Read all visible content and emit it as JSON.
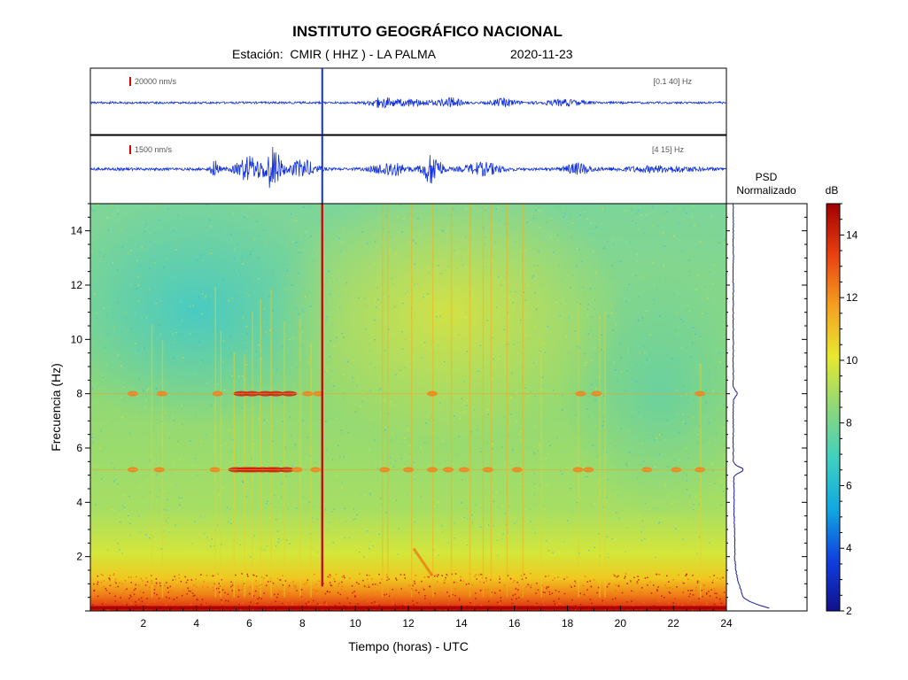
{
  "header": {
    "title": "INSTITUTO GEOGRÁFICO NACIONAL",
    "station_label": "Estación:",
    "station_value": "CMIR ( HHZ ) - LA PALMA",
    "date": "2020-11-23"
  },
  "colors": {
    "trace": "#1030e0",
    "scale_marker": "#e00000",
    "event_line": "#c01010",
    "psd_line": "#1a1a9a",
    "colormap": [
      "#10108a",
      "#1040e0",
      "#10a8e0",
      "#40d0c0",
      "#8ed878",
      "#e8e830",
      "#f4a020",
      "#e84010",
      "#a00000"
    ]
  },
  "chart_data": [
    {
      "type": "line",
      "name": "seismogram-broadband",
      "scale_label": "20000 nm/s",
      "filter_label": "[0.1 40] Hz",
      "x_range": [
        0,
        24
      ],
      "event_time_h": 8.75
    },
    {
      "type": "line",
      "name": "seismogram-filtered",
      "scale_label": "1500 nm/s",
      "filter_label": "[4 15] Hz",
      "x_range": [
        0,
        24
      ],
      "event_time_h": 8.75
    },
    {
      "type": "heatmap",
      "name": "spectrogram",
      "xlabel": "Tiempo (horas) - UTC",
      "ylabel": "Frecuencia  (Hz)",
      "xlim": [
        0,
        24
      ],
      "ylim": [
        0,
        15
      ],
      "x_ticks": [
        "2",
        "4",
        "6",
        "8",
        "10",
        "12",
        "14",
        "16",
        "18",
        "20",
        "22",
        "24"
      ],
      "y_ticks": [
        "2",
        "4",
        "6",
        "8",
        "10",
        "12",
        "14"
      ],
      "event_time_h": 8.75,
      "tremor_bands_hz": [
        5.2,
        8.0
      ]
    },
    {
      "type": "line",
      "name": "psd",
      "title": "PSD",
      "subtitle": "Normalizado",
      "ylim": [
        0,
        15
      ],
      "peak_hz": [
        5.2,
        8.0
      ]
    },
    {
      "type": "colorbar",
      "name": "colorbar",
      "title": "dB",
      "range": [
        2,
        15
      ],
      "ticks": [
        "2",
        "4",
        "6",
        "8",
        "10",
        "12",
        "14"
      ]
    }
  ]
}
